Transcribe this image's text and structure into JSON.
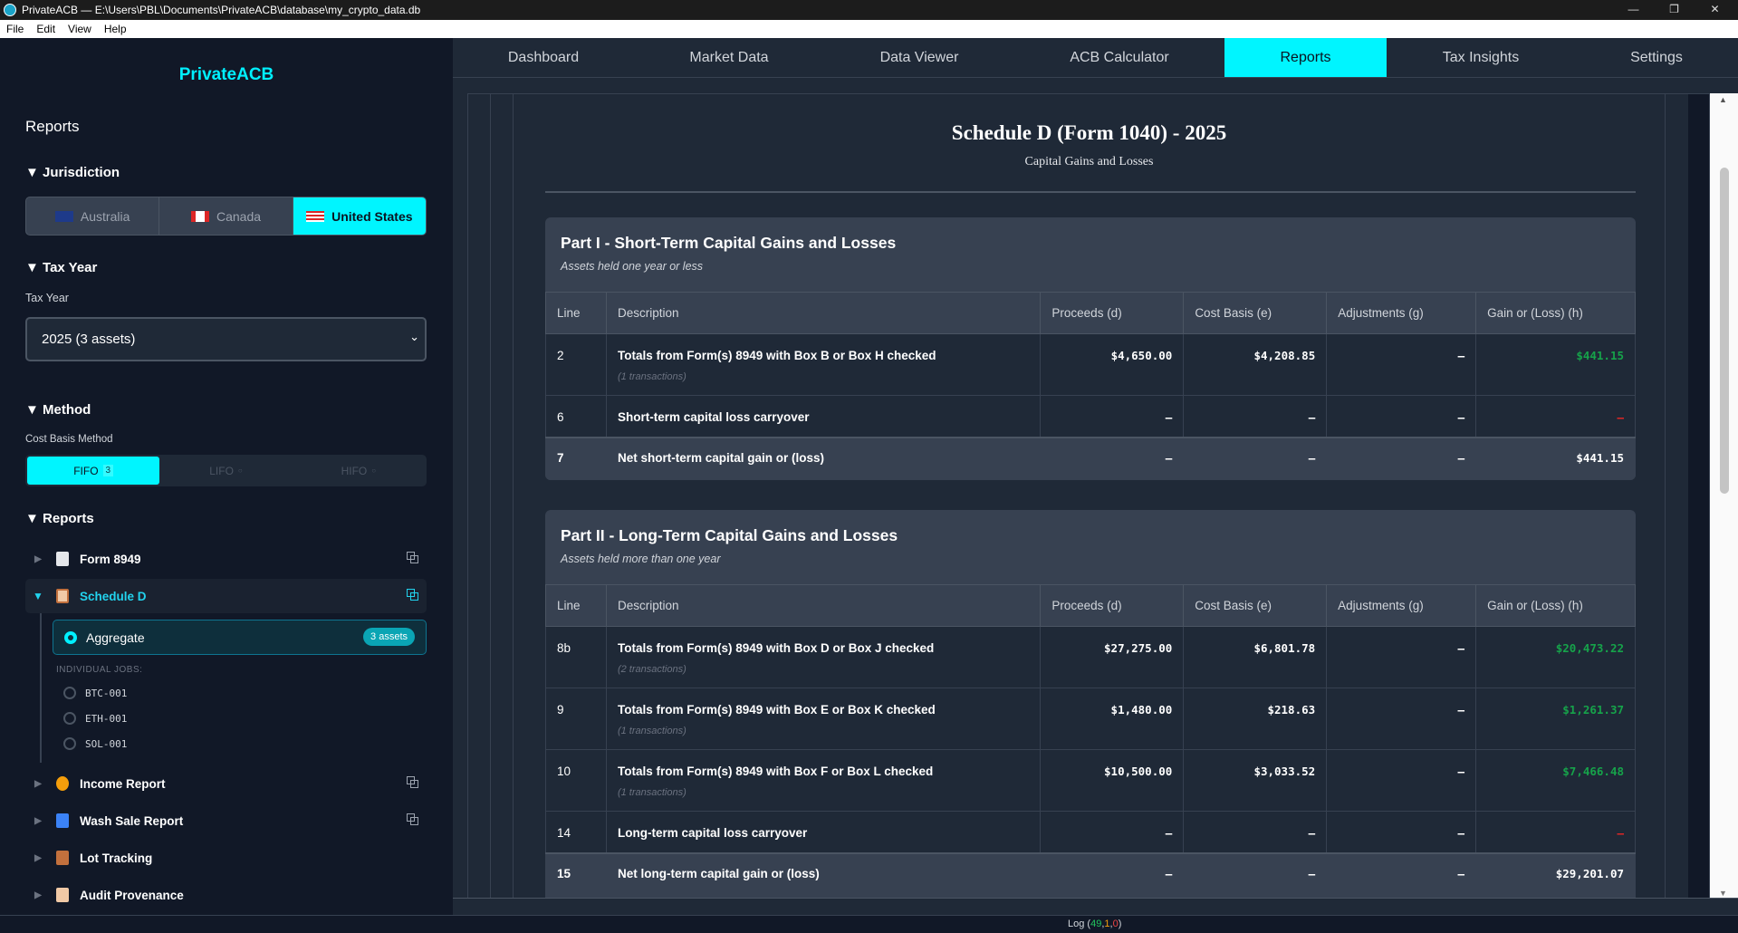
{
  "window": {
    "title": "PrivateACB — E:\\Users\\PBL\\Documents\\PrivateACB\\database\\my_crypto_data.db",
    "controls": [
      "—",
      "❐",
      "✕"
    ]
  },
  "menu": [
    "File",
    "Edit",
    "View",
    "Help"
  ],
  "sidebar": {
    "brand": "PrivateACB",
    "title": "Reports",
    "jurisdiction": {
      "heading": "Jurisdiction",
      "options": [
        "Australia",
        "Canada",
        "United States"
      ],
      "selected": "United States"
    },
    "tax_year": {
      "heading": "Tax Year",
      "label": "Tax Year",
      "value": "2025 (3 assets)"
    },
    "method": {
      "heading": "Method",
      "label": "Cost Basis Method",
      "options": [
        {
          "label": "FIFO",
          "count": "3"
        },
        {
          "label": "LIFO",
          "count": "0"
        },
        {
          "label": "HIFO",
          "count": "0"
        }
      ],
      "selected": "FIFO"
    },
    "reports": {
      "heading": "Reports",
      "items": [
        {
          "label": "Form 8949",
          "icon": "document-icon"
        },
        {
          "label": "Schedule D",
          "icon": "clipboard-icon",
          "expanded": true
        },
        {
          "label": "Income Report",
          "icon": "money-bag-icon"
        },
        {
          "label": "Wash Sale Report",
          "icon": "repeat-icon"
        },
        {
          "label": "Lot Tracking",
          "icon": "package-icon"
        },
        {
          "label": "Audit Provenance",
          "icon": "clipboard-icon"
        }
      ],
      "aggregate": {
        "label": "Aggregate",
        "badge": "3 assets"
      },
      "individual_label": "INDIVIDUAL JOBS:",
      "jobs": [
        "BTC-001",
        "ETH-001",
        "SOL-001"
      ]
    }
  },
  "tabs": [
    "Dashboard",
    "Market Data",
    "Data Viewer",
    "ACB Calculator",
    "Reports",
    "Tax Insights",
    "Settings"
  ],
  "active_tab": "Reports",
  "report": {
    "title": "Schedule D (Form 1040) - 2025",
    "subtitle": "Capital Gains and Losses",
    "columns": [
      "Line",
      "Description",
      "Proceeds (d)",
      "Cost Basis (e)",
      "Adjustments (g)",
      "Gain or (Loss) (h)"
    ],
    "parts": [
      {
        "title": "Part I - Short-Term Capital Gains and Losses",
        "subtitle": "Assets held one year or less",
        "rows": [
          {
            "line": "2",
            "desc": "Totals from Form(s) 8949 with Box B or Box H checked",
            "tx": "(1 transactions)",
            "proceeds": "$4,650.00",
            "cost": "$4,208.85",
            "adj": "–",
            "gain": "$441.15",
            "gain_kind": "gain"
          },
          {
            "line": "6",
            "desc": "Short-term capital loss carryover",
            "tx": "",
            "proceeds": "–",
            "cost": "–",
            "adj": "–",
            "gain": "–",
            "gain_kind": "neg"
          },
          {
            "line": "7",
            "desc": "Net short-term capital gain or (loss)",
            "tx": "",
            "proceeds": "–",
            "cost": "–",
            "adj": "–",
            "gain": "$441.15",
            "total": true
          }
        ]
      },
      {
        "title": "Part II - Long-Term Capital Gains and Losses",
        "subtitle": "Assets held more than one year",
        "rows": [
          {
            "line": "8b",
            "desc": "Totals from Form(s) 8949 with Box D or Box J checked",
            "tx": "(2 transactions)",
            "proceeds": "$27,275.00",
            "cost": "$6,801.78",
            "adj": "–",
            "gain": "$20,473.22",
            "gain_kind": "gain"
          },
          {
            "line": "9",
            "desc": "Totals from Form(s) 8949 with Box E or Box K checked",
            "tx": "(1 transactions)",
            "proceeds": "$1,480.00",
            "cost": "$218.63",
            "adj": "–",
            "gain": "$1,261.37",
            "gain_kind": "gain"
          },
          {
            "line": "10",
            "desc": "Totals from Form(s) 8949 with Box F or Box L checked",
            "tx": "(1 transactions)",
            "proceeds": "$10,500.00",
            "cost": "$3,033.52",
            "adj": "–",
            "gain": "$7,466.48",
            "gain_kind": "gain"
          },
          {
            "line": "14",
            "desc": "Long-term capital loss carryover",
            "tx": "",
            "proceeds": "–",
            "cost": "–",
            "adj": "–",
            "gain": "–",
            "gain_kind": "neg"
          },
          {
            "line": "15",
            "desc": "Net long-term capital gain or (loss)",
            "tx": "",
            "proceeds": "–",
            "cost": "–",
            "adj": "–",
            "gain": "$29,201.07",
            "total": true
          }
        ]
      }
    ]
  },
  "status": {
    "label": "Log",
    "counts": [
      "49",
      "1",
      "0"
    ]
  },
  "colors": {
    "accent": "#00f5ff",
    "gain": "#16a34a",
    "loss": "#dc2626",
    "sidebar_bg": "#111827",
    "card_bg": "#374151"
  }
}
